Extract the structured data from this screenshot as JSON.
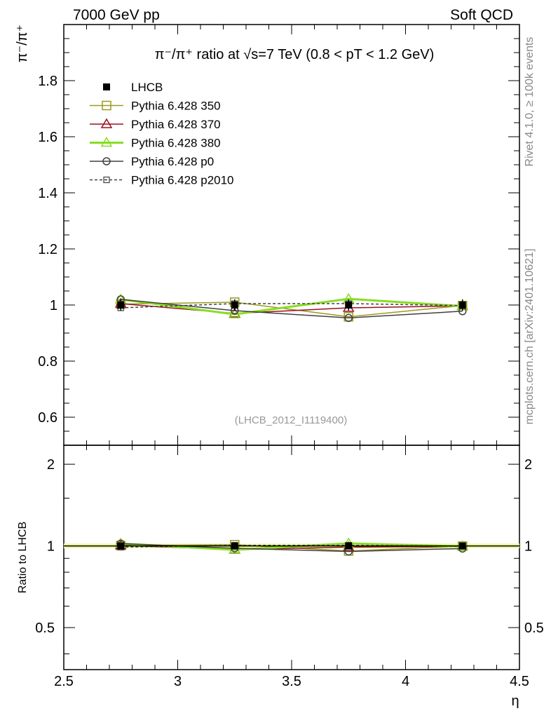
{
  "header": {
    "left": "7000 GeV pp",
    "right": "Soft QCD"
  },
  "side_labels": {
    "rivet": "Rivet 4.1.0, ≥ 100k events",
    "mcplots": "mcplots.cern.ch [arXiv:2401.10621]"
  },
  "chart_data": {
    "type": "line",
    "title": "π⁻/π⁺ ratio at √s=7 TeV (0.8 < pT < 1.2 GeV)",
    "analysis_id": "(LHCB_2012_I1119400)",
    "xlabel": "η",
    "ylabel": "π⁻/π⁺",
    "ratio_ylabel": "Ratio to LHCB",
    "xlim": [
      2.5,
      4.5
    ],
    "ylim": [
      0.5,
      2.0
    ],
    "ratio_ylim": [
      0.35,
      2.35
    ],
    "x_ticks": [
      "2.5",
      "3",
      "3.5",
      "4",
      "4.5"
    ],
    "y_ticks": [
      "0.6",
      "0.8",
      "1",
      "1.2",
      "1.4",
      "1.6",
      "1.8"
    ],
    "ratio_ticks": [
      "0.5",
      "1",
      "2"
    ],
    "x": [
      2.75,
      3.25,
      3.75,
      4.25
    ],
    "legend_position": "top-left",
    "series": [
      {
        "name": "LHCB",
        "values": [
          1.0,
          1.0,
          1.0,
          1.0
        ],
        "errors": [
          0.02,
          0.02,
          0.02,
          0.02
        ],
        "color": "#000000",
        "marker": "filled-square",
        "dash": false
      },
      {
        "name": "Pythia 6.428 350",
        "values": [
          1.003,
          1.01,
          0.958,
          0.998
        ],
        "color": "#9a9a20",
        "marker": "open-square",
        "dash": false
      },
      {
        "name": "Pythia 6.428 370",
        "values": [
          1.005,
          0.97,
          0.99,
          0.997
        ],
        "color": "#9a1020",
        "marker": "open-triangle",
        "dash": false
      },
      {
        "name": "Pythia 6.428 380",
        "values": [
          1.02,
          0.967,
          1.022,
          0.996
        ],
        "color": "#88dd22",
        "marker": "open-triangle",
        "dash": false
      },
      {
        "name": "Pythia 6.428 p0",
        "values": [
          1.02,
          0.98,
          0.954,
          0.978
        ],
        "color": "#404040",
        "marker": "open-circle",
        "dash": false
      },
      {
        "name": "Pythia 6.428 p2010",
        "values": [
          0.99,
          1.005,
          1.005,
          0.998
        ],
        "color": "#404040",
        "marker": "open-square-small",
        "dash": true
      }
    ]
  }
}
